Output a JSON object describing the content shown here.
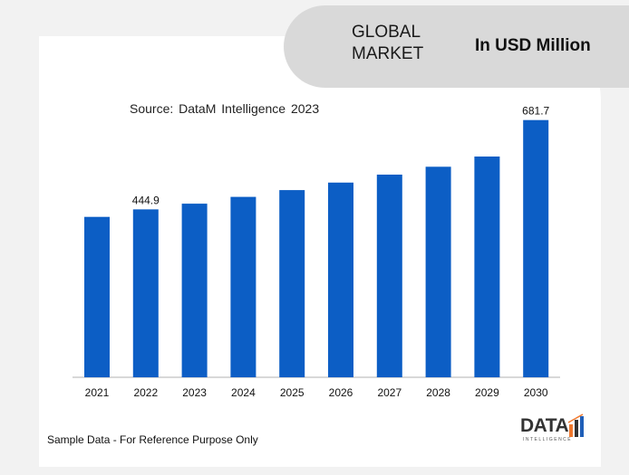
{
  "header": {
    "title": "GLOBAL MARKET",
    "unit": "In USD Million"
  },
  "source_text": "Source: DataM Intelligence 2023",
  "footnote": "Sample Data - For Reference Purpose Only",
  "logo": {
    "word": "DATA",
    "sub": "INTELLIGENCE",
    "colors": {
      "text": "#333333",
      "bar_orange": "#f0782d",
      "bar_blue": "#1f5fb8"
    }
  },
  "chart_data": {
    "type": "bar",
    "categories": [
      "2021",
      "2022",
      "2023",
      "2024",
      "2025",
      "2026",
      "2027",
      "2028",
      "2029",
      "2030"
    ],
    "values": [
      425.0,
      444.9,
      460.0,
      478.0,
      496.0,
      516.0,
      537.0,
      558.0,
      585.0,
      681.7
    ],
    "data_labels": {
      "1": "444.9",
      "9": "681.7"
    },
    "ylim": [
      0,
      760
    ],
    "bar_color": "#0c5ec5",
    "grid": false,
    "title": "",
    "xlabel": "",
    "ylabel": ""
  }
}
